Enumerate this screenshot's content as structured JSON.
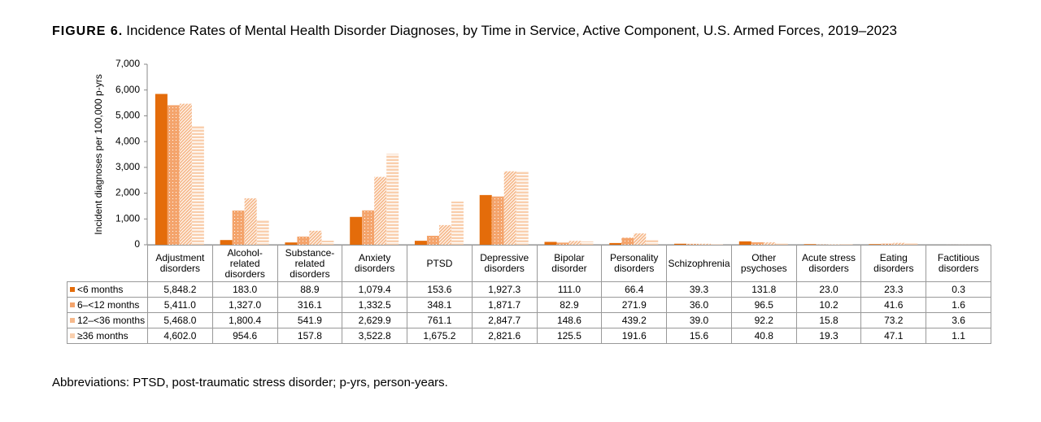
{
  "chart_data": {
    "type": "bar",
    "figure_label": "FIGURE 6.",
    "title": "Incidence Rates of Mental Health Disorder Diagnoses, by Time in Service, Active Component, U.S. Armed Forces, 2019–2023",
    "y_label": "Incident diagnoses per 100,000 p-yrs",
    "categories": [
      "Adjustment\ndisorders",
      "Alcohol-\nrelated\ndisorders",
      "Substance-\nrelated\ndisorders",
      "Anxiety\ndisorders",
      "PTSD",
      "Depressive\ndisorders",
      "Bipolar\ndisorder",
      "Personality\ndisorders",
      "Schizophrenia",
      "Other\npsychoses",
      "Acute stress\ndisorders",
      "Eating\ndisorders",
      "Factitious\ndisorders"
    ],
    "ylim": [
      0,
      7000
    ],
    "yticks": [
      0,
      {
        "value": 1000,
        "label": "1,000"
      },
      {
        "value": 2000,
        "label": "2,000"
      },
      {
        "value": 3000,
        "label": "3,000"
      },
      {
        "value": 4000,
        "label": "4,000"
      },
      {
        "value": 5000,
        "label": "5,000"
      },
      {
        "value": 6000,
        "label": "6,000"
      },
      {
        "value": 7000,
        "label": "7,000"
      }
    ],
    "grid": false,
    "series": [
      {
        "name": "<6 months",
        "color": "#e46c0a",
        "pattern": "solid",
        "values": [
          5848.2,
          183.0,
          88.9,
          1079.4,
          153.6,
          1927.3,
          111.0,
          66.4,
          39.3,
          131.8,
          23.0,
          23.3,
          0.3
        ],
        "value_labels": [
          "5,848.2",
          "183.0",
          "88.9",
          "1,079.4",
          "153.6",
          "1,927.3",
          "111.0",
          "66.4",
          "39.3",
          "131.8",
          "23.0",
          "23.3",
          "0.3"
        ]
      },
      {
        "name": "6–<12 months",
        "color": "#f4a46c",
        "pattern": "dots",
        "values": [
          5411.0,
          1327.0,
          316.1,
          1332.5,
          348.1,
          1871.7,
          82.9,
          271.9,
          36.0,
          96.5,
          10.2,
          41.6,
          1.6
        ],
        "value_labels": [
          "5,411.0",
          "1,327.0",
          "316.1",
          "1,332.5",
          "348.1",
          "1,871.7",
          "82.9",
          "271.9",
          "36.0",
          "96.5",
          "10.2",
          "41.6",
          "1.6"
        ]
      },
      {
        "name": "12–<36 months",
        "color": "#f6b98c",
        "pattern": "diagonal",
        "values": [
          5468.0,
          1800.4,
          541.9,
          2629.9,
          761.1,
          2847.7,
          148.6,
          439.2,
          39.0,
          92.2,
          15.8,
          73.2,
          3.6
        ],
        "value_labels": [
          "5,468.0",
          "1,800.4",
          "541.9",
          "2,629.9",
          "761.1",
          "2,847.7",
          "148.6",
          "439.2",
          "39.0",
          "92.2",
          "15.8",
          "73.2",
          "3.6"
        ]
      },
      {
        "name": "≥36 months",
        "color": "#f9cfae",
        "pattern": "horizontal",
        "values": [
          4602.0,
          954.6,
          157.8,
          3522.8,
          1675.2,
          2821.6,
          125.5,
          191.6,
          15.6,
          40.8,
          19.3,
          47.1,
          1.1
        ],
        "value_labels": [
          "4,602.0",
          "954.6",
          "157.8",
          "3,522.8",
          "1,675.2",
          "2,821.6",
          "125.5",
          "191.6",
          "15.6",
          "40.8",
          "19.3",
          "47.1",
          "1.1"
        ]
      }
    ],
    "footnote": "Abbreviations: PTSD, post-traumatic stress disorder; p-yrs, person-years."
  }
}
